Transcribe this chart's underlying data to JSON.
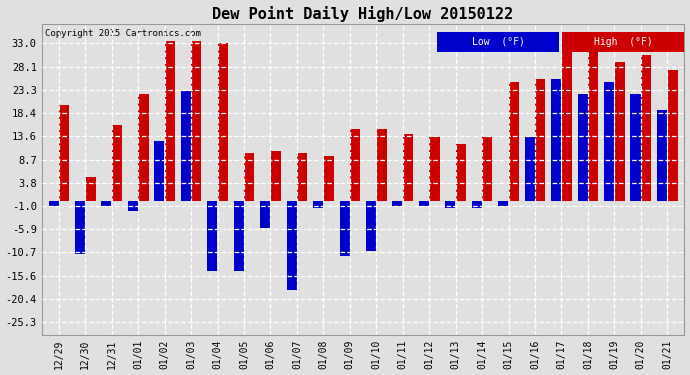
{
  "title": "Dew Point Daily High/Low 20150122",
  "copyright": "Copyright 2015 Cartronics.com",
  "labels": [
    "12/29",
    "12/30",
    "12/31",
    "01/01",
    "01/02",
    "01/03",
    "01/04",
    "01/05",
    "01/06",
    "01/07",
    "01/08",
    "01/09",
    "01/10",
    "01/11",
    "01/12",
    "01/13",
    "01/14",
    "01/15",
    "01/16",
    "01/17",
    "01/18",
    "01/19",
    "01/20",
    "01/21"
  ],
  "high": [
    20.0,
    5.0,
    16.0,
    22.5,
    33.5,
    33.5,
    33.0,
    10.0,
    10.5,
    10.0,
    9.5,
    15.0,
    15.0,
    14.0,
    13.5,
    12.0,
    13.5,
    25.0,
    25.5,
    33.0,
    33.0,
    29.0,
    30.5,
    27.5
  ],
  "low": [
    -1.0,
    -11.0,
    -1.0,
    -2.0,
    12.5,
    23.0,
    -14.5,
    -14.5,
    -5.5,
    -18.5,
    -1.5,
    -11.5,
    -10.5,
    -1.0,
    -1.0,
    -1.5,
    -1.5,
    -1.0,
    13.5,
    25.5,
    22.5,
    25.0,
    22.5,
    19.0
  ],
  "yticks": [
    33.0,
    28.1,
    23.3,
    18.4,
    13.6,
    8.7,
    3.8,
    -1.0,
    -5.9,
    -10.7,
    -15.6,
    -20.4,
    -25.3
  ],
  "ylim": [
    -28,
    37
  ],
  "bar_color_high": "#cc0000",
  "bar_color_low": "#0000cc",
  "bg_color": "#e0e0e0",
  "grid_color": "#ffffff",
  "legend_low_bg": "#0000cc",
  "legend_high_bg": "#cc0000",
  "legend_low_label": "Low  (°F)",
  "legend_high_label": "High  (°F)",
  "bar_width": 0.38,
  "bar_gap": 0.02
}
